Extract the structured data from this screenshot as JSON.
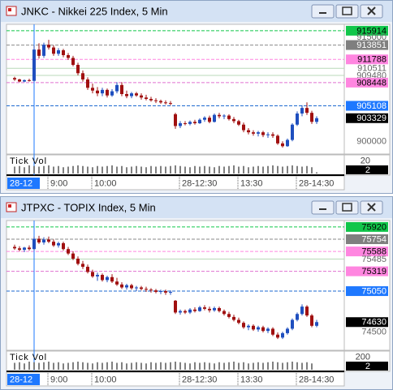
{
  "chart_data": [
    {
      "type": "candlestick",
      "title": "JNKC - Nikkei 225 Index, 5 Min",
      "ylim": [
        898400,
        916600
      ],
      "up_color": "#1f4fbf",
      "down_color": "#a01010",
      "levels": [
        {
          "value": 915914,
          "color": "#11c64a",
          "text_color": "#000000",
          "line": "#11c64a"
        },
        {
          "value": 915000,
          "text_color": "#666666"
        },
        {
          "value": 913851,
          "color": "#7f7f7f",
          "text_color": "#ffffff",
          "line": "#8a8a8a"
        },
        {
          "value": 911788,
          "color": "#ff86e0",
          "text_color": "#000000",
          "line": "#ff86e0"
        },
        {
          "value": 910511,
          "text_color": "#666666",
          "line": "#b8d8b8"
        },
        {
          "value": 909480,
          "text_color": "#666666",
          "line": "#b8d8b8"
        },
        {
          "value": 908448,
          "color": "#ff86e0",
          "text_color": "#000000",
          "line": "#e070d0"
        },
        {
          "value": 905108,
          "color": "#1e78ff",
          "text_color": "#ffffff",
          "line": "#1e6ad0"
        },
        {
          "value": 900000,
          "text_color": "#666666"
        }
      ],
      "categories": [
        null,
        null,
        null,
        null,
        null,
        null,
        null,
        "9:00",
        null,
        null,
        null,
        null,
        null,
        null,
        null,
        null,
        "10:00",
        null,
        null,
        null,
        null,
        null,
        null,
        null,
        null,
        null,
        null,
        null,
        null,
        null,
        null,
        null,
        null,
        null,
        "28-12:30",
        null,
        null,
        null,
        null,
        null,
        null,
        null,
        null,
        null,
        null,
        null,
        "13:30",
        null,
        null,
        null,
        null,
        null,
        null,
        null,
        null,
        null,
        null,
        null,
        "28-14:30",
        null,
        null,
        null,
        null
      ],
      "cursor_label": "28-12",
      "ohlc": [
        [
          909100,
          909300,
          908700,
          908900
        ],
        [
          908900,
          909000,
          908500,
          908600
        ],
        [
          908600,
          908900,
          908500,
          908800
        ],
        [
          908800,
          909000,
          908600,
          908700
        ],
        [
          908700,
          913800,
          908600,
          913200
        ],
        [
          913200,
          914100,
          911900,
          912300
        ],
        [
          912300,
          914200,
          912000,
          913900
        ],
        [
          913900,
          914600,
          913200,
          913500
        ],
        [
          913500,
          913800,
          912300,
          912600
        ],
        [
          912600,
          913400,
          912300,
          913100
        ],
        [
          913100,
          913300,
          912100,
          912400
        ],
        [
          912400,
          912700,
          911700,
          912000
        ],
        [
          912000,
          912300,
          910800,
          911000
        ],
        [
          911000,
          911300,
          909500,
          909800
        ],
        [
          909800,
          910200,
          908600,
          908900
        ],
        [
          908900,
          909200,
          907400,
          907700
        ],
        [
          907700,
          908300,
          906900,
          907300
        ],
        [
          907300,
          907800,
          906500,
          906900
        ],
        [
          906900,
          907700,
          906500,
          907400
        ],
        [
          907400,
          907600,
          906300,
          906600
        ],
        [
          906600,
          907500,
          906400,
          907200
        ],
        [
          907200,
          908500,
          906900,
          908100
        ],
        [
          908100,
          908500,
          906500,
          906800
        ],
        [
          906800,
          907300,
          906200,
          906500
        ],
        [
          906500,
          907100,
          906200,
          906900
        ],
        [
          906900,
          907100,
          906400,
          906600
        ],
        [
          906600,
          906900,
          906000,
          906300
        ],
        [
          906300,
          906700,
          905900,
          906100
        ],
        [
          906100,
          906400,
          905700,
          905900
        ],
        [
          905900,
          906200,
          905500,
          905800
        ],
        [
          905800,
          906000,
          905400,
          905600
        ],
        [
          905600,
          905900,
          905300,
          905500
        ],
        [
          905500,
          905800,
          905200,
          905400
        ],
        [
          903900,
          904100,
          901800,
          902200
        ],
        [
          902200,
          902900,
          901900,
          902600
        ],
        [
          902600,
          902900,
          902300,
          902500
        ],
        [
          902500,
          903000,
          902300,
          902800
        ],
        [
          902800,
          903100,
          902400,
          902600
        ],
        [
          902600,
          903300,
          902500,
          903100
        ],
        [
          903100,
          903600,
          902800,
          903400
        ],
        [
          903400,
          903700,
          902600,
          902800
        ],
        [
          902800,
          904000,
          902700,
          903800
        ],
        [
          903800,
          904100,
          903300,
          903600
        ],
        [
          903600,
          903900,
          903200,
          903700
        ],
        [
          903700,
          903900,
          903000,
          903200
        ],
        [
          903200,
          903500,
          902600,
          902900
        ],
        [
          902900,
          903100,
          902200,
          902400
        ],
        [
          902400,
          902700,
          901300,
          901600
        ],
        [
          901600,
          901900,
          901000,
          901300
        ],
        [
          901300,
          901600,
          900800,
          901100
        ],
        [
          901100,
          901500,
          900700,
          901300
        ],
        [
          901300,
          901500,
          900600,
          900900
        ],
        [
          900900,
          901300,
          900500,
          901000
        ],
        [
          901000,
          901300,
          900500,
          900800
        ],
        [
          900800,
          901000,
          899500,
          899700
        ],
        [
          899700,
          900000,
          899100,
          899300
        ],
        [
          899300,
          900400,
          899200,
          900200
        ],
        [
          900200,
          902600,
          900000,
          902400
        ],
        [
          902400,
          904300,
          902200,
          904000
        ],
        [
          904000,
          905200,
          903600,
          904800
        ],
        [
          904800,
          905600,
          903800,
          904100
        ],
        [
          904100,
          904400,
          902500,
          902800
        ],
        [
          902800,
          903600,
          902500,
          903329
        ]
      ],
      "volume_label": "Tick Vol",
      "volume_ylim": [
        0,
        26
      ],
      "volume_ticks": [
        20
      ],
      "volume": [
        11,
        12,
        10,
        13,
        12,
        11,
        12,
        13,
        11,
        12,
        10,
        11,
        12,
        13,
        12,
        11,
        10,
        12,
        11,
        12,
        13,
        11,
        12,
        10,
        11,
        12,
        11,
        10,
        12,
        11,
        12,
        11,
        12,
        13,
        12,
        11,
        10,
        12,
        11,
        12,
        11,
        10,
        12,
        11,
        12,
        13,
        11,
        12,
        10,
        11,
        12,
        11,
        12,
        13,
        12,
        11,
        12,
        13,
        12,
        11,
        12,
        10,
        2
      ]
    },
    {
      "type": "candlestick",
      "title": "JTPXC - TOPIX Index, 5 Min",
      "ylim": [
        74270,
        75985
      ],
      "up_color": "#1f4fbf",
      "down_color": "#a01010",
      "levels": [
        {
          "value": 75920,
          "color": "#11c64a",
          "text_color": "#000000",
          "line": "#11c64a"
        },
        {
          "value": 75754,
          "color": "#7f7f7f",
          "text_color": "#ffffff",
          "line": "#8a8a8a"
        },
        {
          "value": 75588,
          "color": "#ff86e0",
          "text_color": "#000000",
          "line": "#ff86e0"
        },
        {
          "value": 75485,
          "text_color": "#666666",
          "line": "#b8d8b8"
        },
        {
          "value": 75319,
          "color": "#ff86e0",
          "text_color": "#000000",
          "line": "#e070d0"
        },
        {
          "value": 75050,
          "color": "#1e78ff",
          "text_color": "#ffffff",
          "line": "#1e6ad0"
        },
        {
          "value": 74500,
          "text_color": "#666666"
        }
      ],
      "categories": [
        null,
        null,
        null,
        null,
        null,
        null,
        null,
        "9:00",
        null,
        null,
        null,
        null,
        null,
        null,
        null,
        null,
        "10:00",
        null,
        null,
        null,
        null,
        null,
        null,
        null,
        null,
        null,
        null,
        null,
        null,
        null,
        null,
        null,
        null,
        null,
        "28-12:30",
        null,
        null,
        null,
        null,
        null,
        null,
        null,
        null,
        null,
        null,
        null,
        "13:30",
        null,
        null,
        null,
        null,
        null,
        null,
        null,
        null,
        null,
        null,
        null,
        "28-14:30",
        null,
        null,
        null,
        null
      ],
      "cursor_label": "28-12",
      "ohlc": [
        [
          75650,
          75680,
          75610,
          75630
        ],
        [
          75630,
          75660,
          75590,
          75610
        ],
        [
          75610,
          75650,
          75580,
          75640
        ],
        [
          75640,
          75670,
          75600,
          75620
        ],
        [
          75620,
          75790,
          75600,
          75760
        ],
        [
          75760,
          75800,
          75690,
          75710
        ],
        [
          75710,
          75780,
          75680,
          75750
        ],
        [
          75750,
          75790,
          75700,
          75720
        ],
        [
          75720,
          75750,
          75650,
          75670
        ],
        [
          75670,
          75720,
          75640,
          75700
        ],
        [
          75700,
          75720,
          75600,
          75620
        ],
        [
          75620,
          75650,
          75540,
          75560
        ],
        [
          75560,
          75590,
          75470,
          75490
        ],
        [
          75490,
          75520,
          75400,
          75420
        ],
        [
          75420,
          75460,
          75350,
          75380
        ],
        [
          75380,
          75410,
          75290,
          75310
        ],
        [
          75310,
          75340,
          75230,
          75250
        ],
        [
          75250,
          75300,
          75190,
          75270
        ],
        [
          75270,
          75290,
          75180,
          75200
        ],
        [
          75200,
          75260,
          75170,
          75240
        ],
        [
          75240,
          75280,
          75160,
          75180
        ],
        [
          75180,
          75230,
          75120,
          75140
        ],
        [
          75140,
          75170,
          75080,
          75100
        ],
        [
          75100,
          75150,
          75070,
          75130
        ],
        [
          75130,
          75150,
          75070,
          75090
        ],
        [
          75090,
          75120,
          75050,
          75100
        ],
        [
          75100,
          75120,
          75060,
          75080
        ],
        [
          75080,
          75110,
          75040,
          75070
        ],
        [
          75070,
          75090,
          75030,
          75060
        ],
        [
          75060,
          75080,
          75020,
          75040
        ],
        [
          75040,
          75070,
          75010,
          75050
        ],
        [
          75050,
          75070,
          75000,
          75030
        ],
        [
          75030,
          75060,
          75000,
          75040
        ],
        [
          74920,
          74930,
          74740,
          74760
        ],
        [
          74760,
          74800,
          74730,
          74780
        ],
        [
          74780,
          74800,
          74740,
          74760
        ],
        [
          74760,
          74820,
          74740,
          74800
        ],
        [
          74800,
          74830,
          74760,
          74780
        ],
        [
          74780,
          74850,
          74770,
          74830
        ],
        [
          74830,
          74860,
          74790,
          74810
        ],
        [
          74810,
          74840,
          74760,
          74790
        ],
        [
          74790,
          74840,
          74770,
          74820
        ],
        [
          74820,
          74840,
          74760,
          74780
        ],
        [
          74780,
          74800,
          74720,
          74740
        ],
        [
          74740,
          74770,
          74680,
          74700
        ],
        [
          74700,
          74730,
          74640,
          74660
        ],
        [
          74660,
          74690,
          74600,
          74620
        ],
        [
          74620,
          74640,
          74540,
          74560
        ],
        [
          74560,
          74600,
          74520,
          74580
        ],
        [
          74580,
          74600,
          74510,
          74530
        ],
        [
          74530,
          74580,
          74500,
          74560
        ],
        [
          74560,
          74580,
          74490,
          74510
        ],
        [
          74510,
          74560,
          74480,
          74540
        ],
        [
          74540,
          74560,
          74440,
          74460
        ],
        [
          74460,
          74490,
          74400,
          74420
        ],
        [
          74420,
          74500,
          74400,
          74480
        ],
        [
          74480,
          74560,
          74460,
          74540
        ],
        [
          74540,
          74680,
          74520,
          74660
        ],
        [
          74660,
          74760,
          74640,
          74740
        ],
        [
          74740,
          74870,
          74720,
          74840
        ],
        [
          74840,
          74860,
          74700,
          74720
        ],
        [
          74720,
          74740,
          74560,
          74580
        ],
        [
          74580,
          74660,
          74560,
          74630
        ]
      ],
      "volume_label": "Tick Vol",
      "volume_ylim": [
        0,
        260
      ],
      "volume_ticks": [
        200
      ],
      "volume": [
        110,
        120,
        100,
        130,
        120,
        110,
        120,
        130,
        110,
        120,
        100,
        110,
        120,
        130,
        120,
        110,
        100,
        120,
        110,
        120,
        130,
        110,
        120,
        100,
        110,
        120,
        110,
        100,
        120,
        110,
        120,
        110,
        120,
        130,
        120,
        110,
        100,
        120,
        110,
        120,
        110,
        100,
        120,
        110,
        120,
        130,
        110,
        120,
        100,
        110,
        120,
        110,
        120,
        130,
        120,
        110,
        120,
        130,
        120,
        110,
        120,
        100,
        2
      ]
    }
  ]
}
